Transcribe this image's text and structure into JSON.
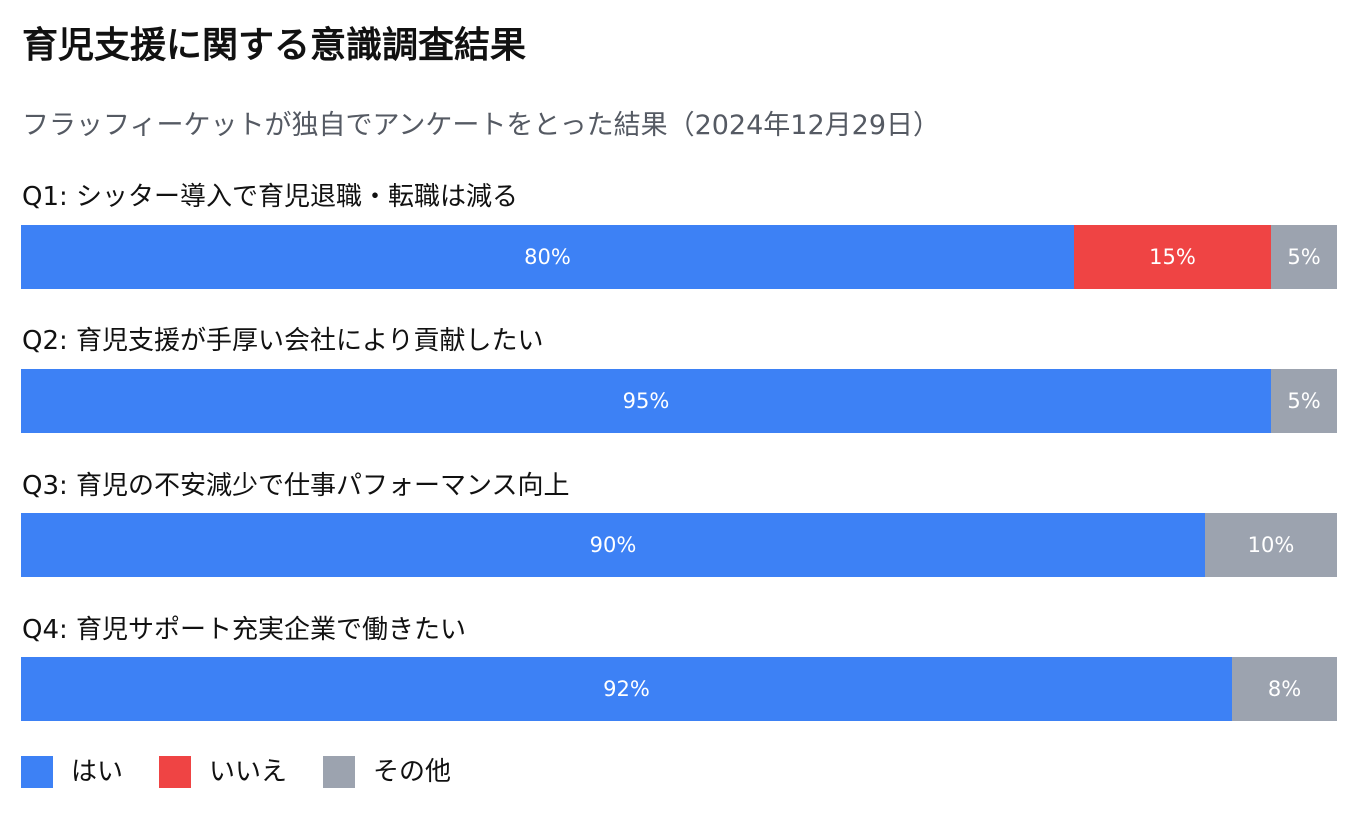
{
  "title": "育児支援に関する意識調査結果",
  "subtitle": "フラッフィーケットが独自でアンケートをとった結果（2024年12月29日）",
  "colors": {
    "yes": "#3d81f5",
    "no": "#ef4444",
    "other": "#9ca3af"
  },
  "chart_data": {
    "type": "bar",
    "orientation": "horizontal",
    "stacked": true,
    "unit": "%",
    "categories": [
      "Q1: シッター導入で育児退職・転職は減る",
      "Q2: 育児支援が手厚い会社により貢献したい",
      "Q3: 育児の不安減少で仕事パフォーマンス向上",
      "Q4: 育児サポート充実企業で働きたい"
    ],
    "series": [
      {
        "name": "はい",
        "color": "#3d81f5",
        "values": [
          80,
          95,
          90,
          92
        ]
      },
      {
        "name": "いいえ",
        "color": "#ef4444",
        "values": [
          15,
          0,
          0,
          0
        ]
      },
      {
        "name": "その他",
        "color": "#9ca3af",
        "values": [
          5,
          5,
          10,
          8
        ]
      }
    ],
    "xlim": [
      0,
      100
    ],
    "legend_position": "bottom-left",
    "grid": false
  }
}
